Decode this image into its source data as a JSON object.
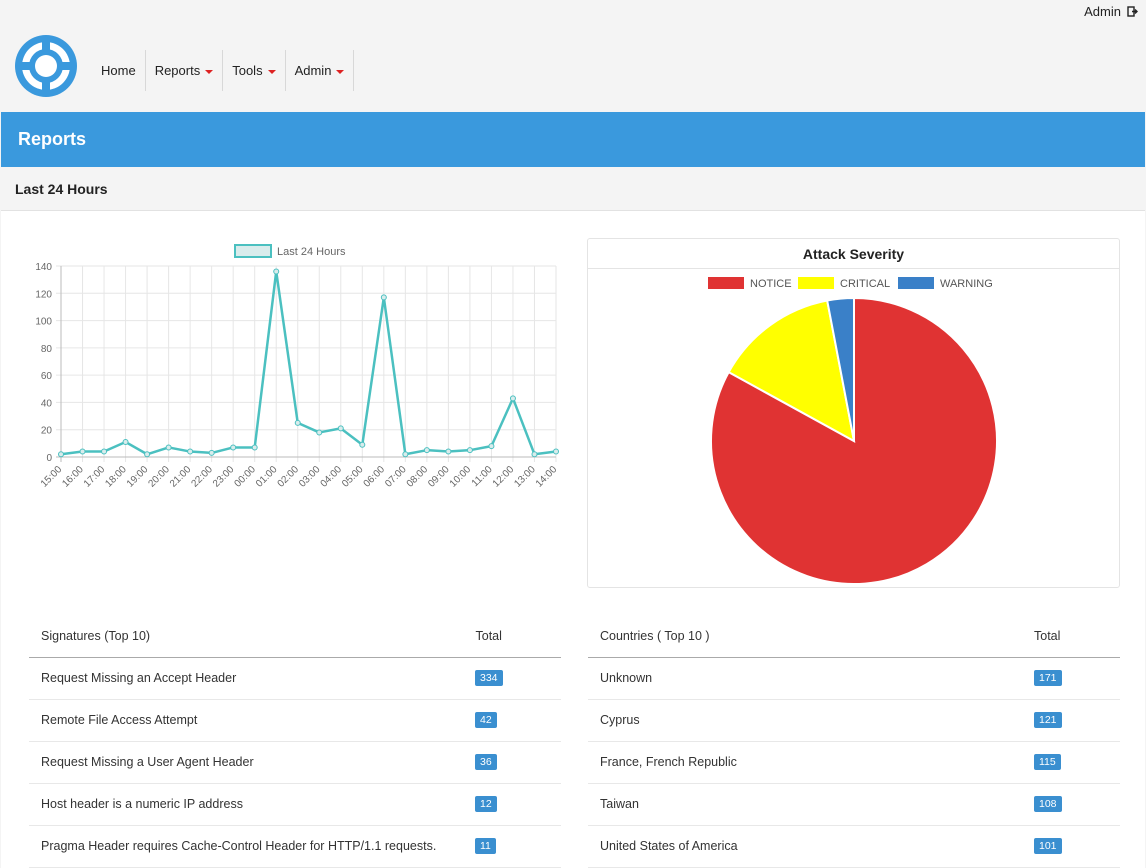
{
  "header": {
    "user_label": "Admin",
    "nav": [
      {
        "label": "Home",
        "dropdown": false
      },
      {
        "label": "Reports",
        "dropdown": true
      },
      {
        "label": "Tools",
        "dropdown": true
      },
      {
        "label": "Admin",
        "dropdown": true
      }
    ]
  },
  "banner": {
    "title": "Reports"
  },
  "section": {
    "title": "Last 24 Hours"
  },
  "colors": {
    "brand": "#3a99dd",
    "line": "#4bc0c0",
    "notice": "#e03333",
    "critical": "#ffff00",
    "warning": "#3a80c8",
    "badge": "#3a8fd0"
  },
  "chart_data": [
    {
      "type": "line",
      "legend": [
        "Last 24 Hours"
      ],
      "x": [
        "15:00",
        "16:00",
        "17:00",
        "18:00",
        "19:00",
        "20:00",
        "21:00",
        "22:00",
        "23:00",
        "00:00",
        "01:00",
        "02:00",
        "03:00",
        "04:00",
        "05:00",
        "06:00",
        "07:00",
        "08:00",
        "09:00",
        "10:00",
        "11:00",
        "12:00",
        "13:00",
        "14:00"
      ],
      "series": [
        {
          "name": "Last 24 Hours",
          "values": [
            2,
            4,
            4,
            11,
            2,
            7,
            4,
            3,
            7,
            7,
            136,
            25,
            18,
            21,
            9,
            117,
            2,
            5,
            4,
            5,
            8,
            43,
            2,
            4
          ]
        }
      ],
      "ylim": [
        0,
        140
      ],
      "yticks": [
        0,
        20,
        40,
        60,
        80,
        100,
        120,
        140
      ],
      "grid": true,
      "legend_position": "top"
    },
    {
      "type": "pie",
      "title": "Attack Severity",
      "labels": [
        "NOTICE",
        "CRITICAL",
        "WARNING"
      ],
      "values": [
        83,
        14,
        3
      ],
      "legend_position": "top"
    }
  ],
  "signatures": {
    "headers": [
      "Signatures (Top 10)",
      "Total"
    ],
    "rows": [
      {
        "name": "Request Missing an Accept Header",
        "total": "334"
      },
      {
        "name": "Remote File Access Attempt",
        "total": "42"
      },
      {
        "name": "Request Missing a User Agent Header",
        "total": "36"
      },
      {
        "name": "Host header is a numeric IP address",
        "total": "12"
      },
      {
        "name": "Pragma Header requires Cache-Control Header for HTTP/1.1 requests.",
        "total": "11"
      }
    ]
  },
  "countries": {
    "headers": [
      "Countries ( Top 10 )",
      "Total"
    ],
    "rows": [
      {
        "name": "Unknown",
        "total": "171"
      },
      {
        "name": "Cyprus",
        "total": "121"
      },
      {
        "name": "France, French Republic",
        "total": "115"
      },
      {
        "name": "Taiwan",
        "total": "108"
      },
      {
        "name": "United States of America",
        "total": "101"
      }
    ]
  }
}
